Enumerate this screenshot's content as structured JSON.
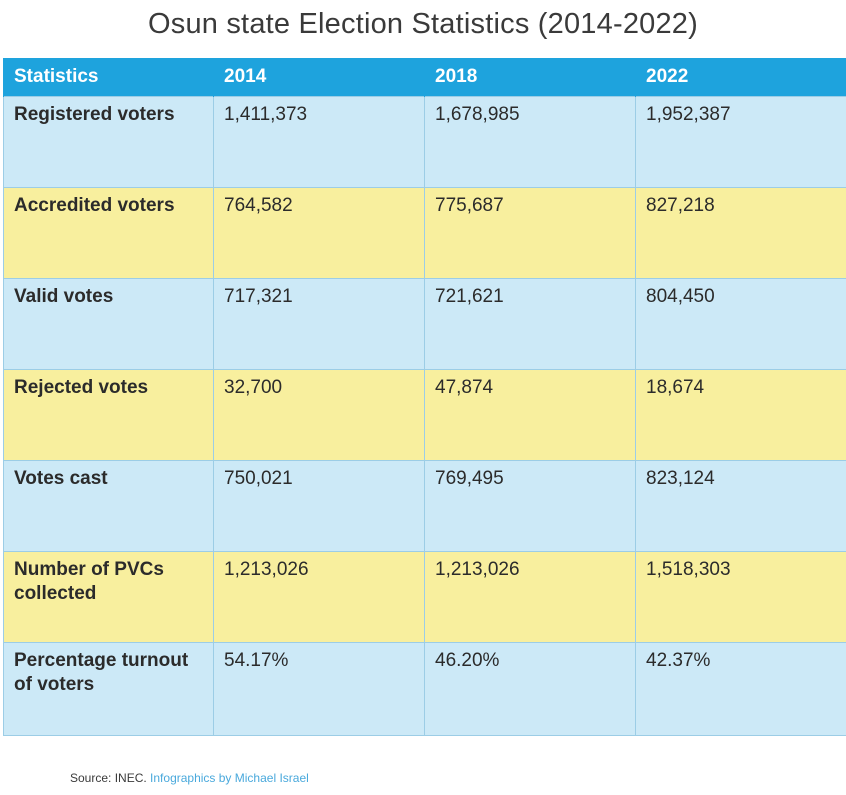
{
  "title": "Osun state Election Statistics (2014-2022)",
  "table": {
    "headers": [
      "Statistics",
      "2014",
      "2018",
      "2022"
    ],
    "rows": [
      {
        "label": "Registered voters",
        "values": [
          "1,411,373",
          "1,678,985",
          "1,952,387"
        ]
      },
      {
        "label": "Accredited voters",
        "values": [
          "764,582",
          "775,687",
          "827,218"
        ]
      },
      {
        "label": "Valid votes",
        "values": [
          "717,321",
          "721,621",
          "804,450"
        ]
      },
      {
        "label": "Rejected votes",
        "values": [
          "32,700",
          "47,874",
          "18,674"
        ]
      },
      {
        "label": "Votes cast",
        "values": [
          "750,021",
          "769,495",
          "823,124"
        ]
      },
      {
        "label": "Number of PVCs collected",
        "values": [
          "1,213,026",
          "1,213,026",
          "1,518,303"
        ]
      },
      {
        "label": "Percentage turnout of voters",
        "values": [
          "54.17%",
          "46.20%",
          "42.37%"
        ]
      }
    ]
  },
  "source": {
    "text": "Source: INEC.",
    "credit": "Infographics by Michael Israel"
  },
  "colors": {
    "header": "#1ea3dd",
    "row_blue": "#cce9f7",
    "row_yellow": "#f8ef9e",
    "credit": "#4aa9dc"
  }
}
